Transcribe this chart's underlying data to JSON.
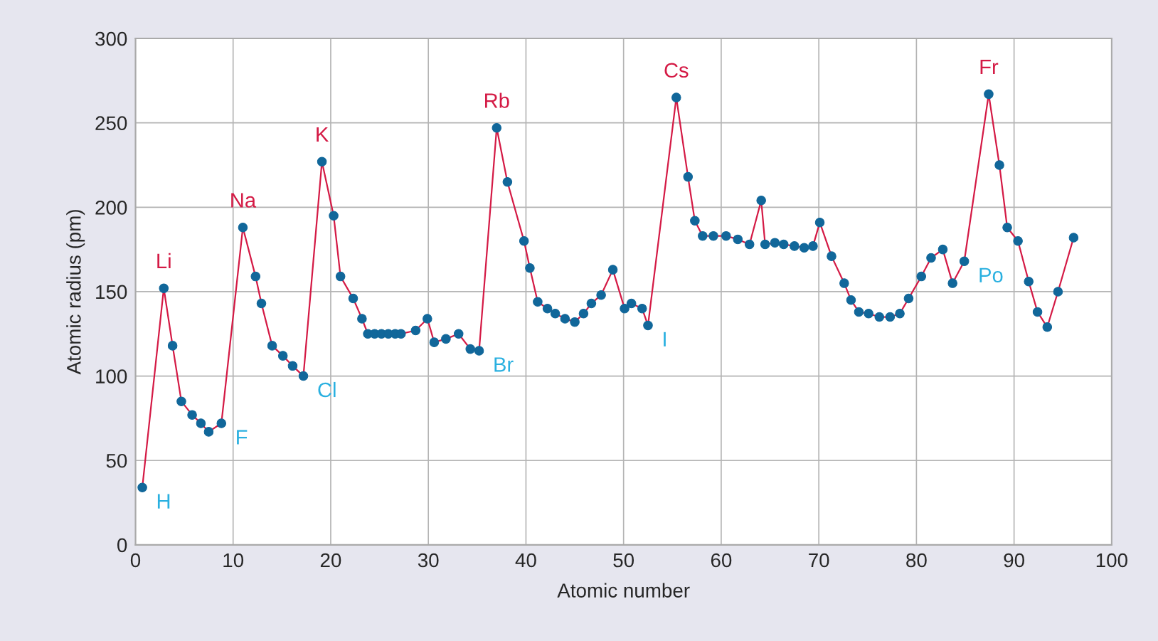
{
  "chart_data": {
    "type": "line",
    "xlabel": "Atomic number",
    "ylabel": "Atomic radius (pm)",
    "xlim": [
      0,
      100
    ],
    "xticks": [
      0,
      10,
      20,
      30,
      40,
      50,
      60,
      70,
      80,
      90,
      100
    ],
    "ylim": [
      0,
      300
    ],
    "yticks": [
      0,
      50,
      100,
      150,
      200,
      250,
      300
    ],
    "grid": true,
    "marker": "circle",
    "line_style": "solid",
    "series": [
      {
        "color": "#d41a45",
        "x": [
          0.7,
          2.9,
          3.8,
          4.7,
          5.8,
          6.7,
          7.5,
          8.8,
          11.0,
          12.3,
          12.9,
          14.0,
          15.1,
          16.1,
          17.2,
          19.1,
          20.3,
          21.0,
          22.3,
          23.2,
          23.8,
          24.5,
          25.2,
          25.9,
          26.6,
          27.2,
          28.7,
          29.9,
          30.6,
          31.8,
          33.1,
          34.3,
          35.2,
          37.0,
          38.1,
          39.8,
          40.4,
          41.2,
          42.2,
          43.0,
          44.0,
          45.0,
          45.9,
          46.7,
          47.7,
          48.9,
          50.1,
          50.8,
          51.9,
          52.5,
          55.4,
          56.6,
          57.3,
          58.1,
          59.2,
          60.5,
          61.7,
          62.9,
          64.1,
          64.5,
          65.5,
          66.4,
          67.5,
          68.5,
          69.4,
          70.1,
          71.3,
          72.6,
          73.3,
          74.1,
          75.1,
          76.2,
          77.3,
          78.3,
          79.2,
          80.5,
          81.5,
          82.7,
          83.7,
          84.9,
          87.4,
          88.5,
          89.3,
          90.4,
          91.5,
          92.4,
          93.4,
          94.5,
          96.1
        ],
        "values": [
          34,
          152,
          118,
          85,
          77,
          72,
          67,
          72,
          188,
          159,
          143,
          118,
          112,
          106,
          100,
          227,
          195,
          159,
          146,
          134,
          125,
          125,
          125,
          125,
          125,
          125,
          127,
          134,
          120,
          122,
          125,
          116,
          115,
          247,
          215,
          180,
          164,
          144,
          140,
          137,
          134,
          132,
          137,
          143,
          148,
          163,
          140,
          143,
          140,
          130,
          265,
          218,
          192,
          183,
          183,
          183,
          181,
          178,
          204,
          178,
          179,
          178,
          177,
          176,
          177,
          191,
          171,
          155,
          145,
          138,
          137,
          135,
          135,
          137,
          146,
          159,
          170,
          175,
          155,
          168,
          267,
          225,
          188,
          180,
          156,
          138,
          129,
          150,
          182
        ]
      }
    ],
    "annotations": [
      {
        "text": "H",
        "x": 0.7,
        "y": 34
      },
      {
        "text": "Li",
        "x": 2.9,
        "y": 152
      },
      {
        "text": "F",
        "x": 8.8,
        "y": 72
      },
      {
        "text": "Na",
        "x": 11.0,
        "y": 188
      },
      {
        "text": "Cl",
        "x": 17.2,
        "y": 100
      },
      {
        "text": "K",
        "x": 19.1,
        "y": 227
      },
      {
        "text": "Br",
        "x": 35.2,
        "y": 115
      },
      {
        "text": "Rb",
        "x": 37.0,
        "y": 247
      },
      {
        "text": "I",
        "x": 52.5,
        "y": 130
      },
      {
        "text": "Cs",
        "x": 55.4,
        "y": 265
      },
      {
        "text": "Po",
        "x": 84.9,
        "y": 168
      },
      {
        "text": "Fr",
        "x": 87.4,
        "y": 267
      }
    ]
  }
}
